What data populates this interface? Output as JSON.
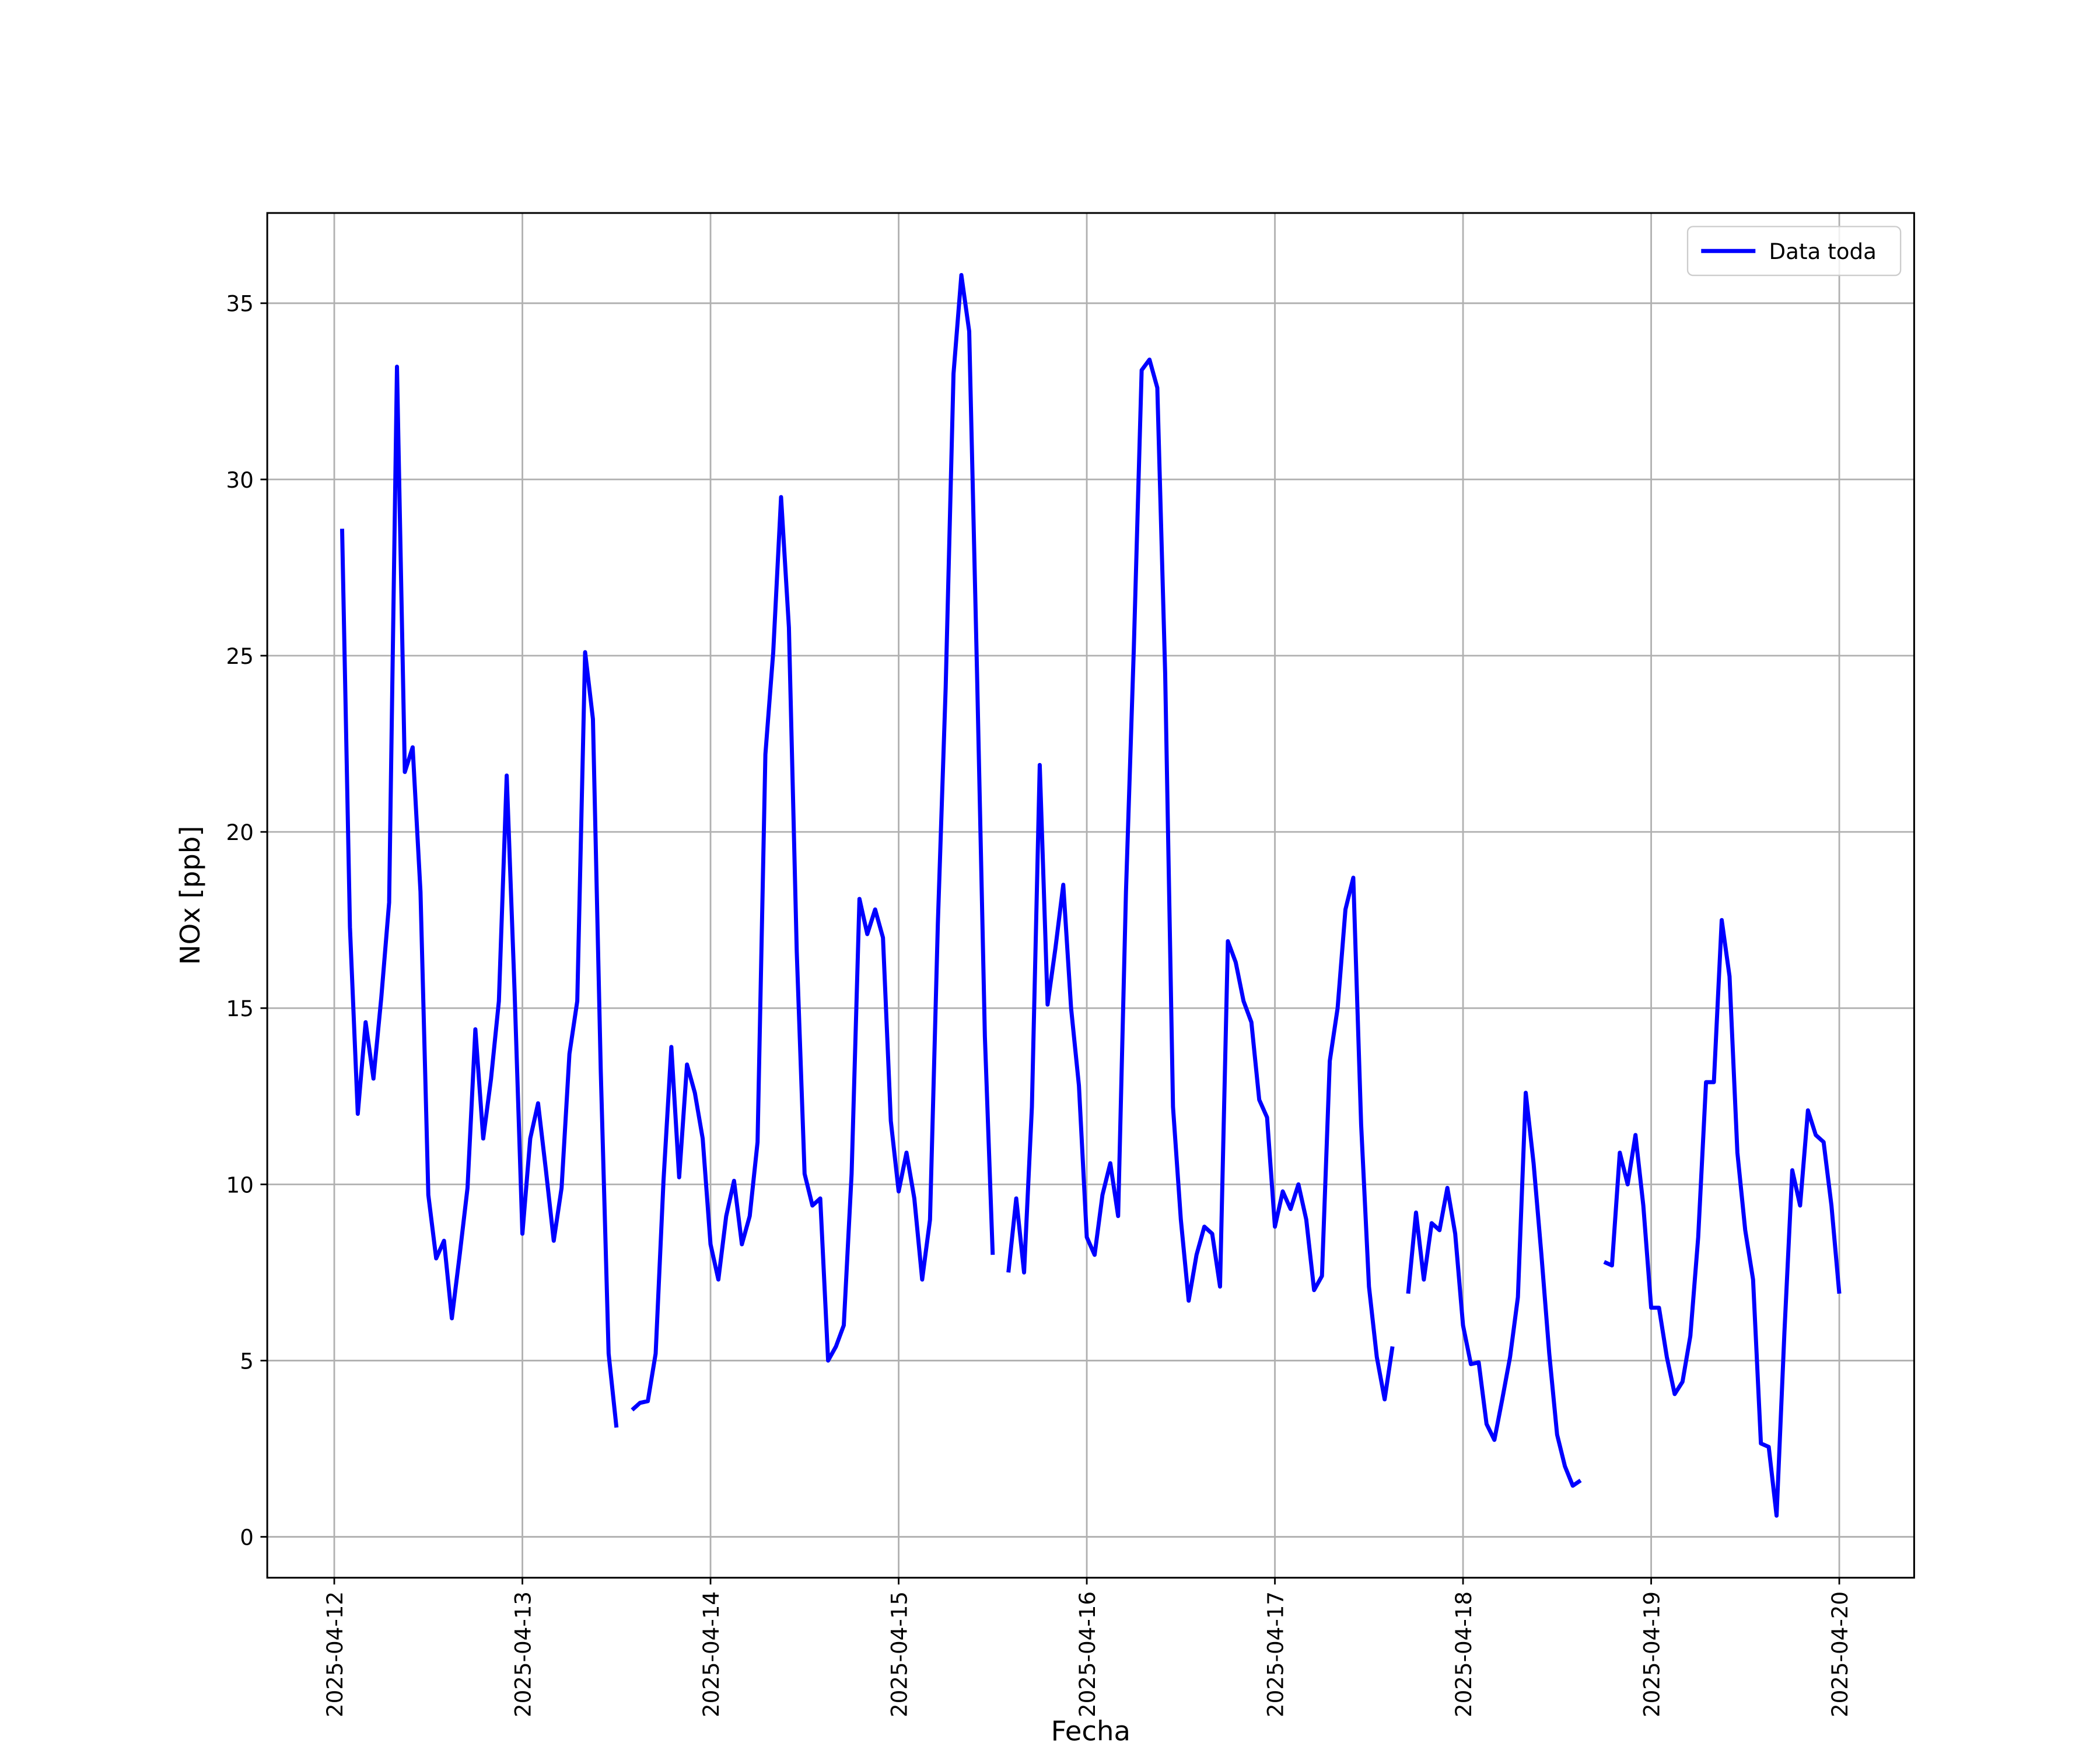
{
  "chart_data": {
    "type": "line",
    "xlabel": "Fecha",
    "ylabel": "NOx [ppb]",
    "x": [
      "2025-04-12 01:00",
      "2025-04-12 02:00",
      "2025-04-12 03:00",
      "2025-04-12 04:00",
      "2025-04-12 05:00",
      "2025-04-12 06:00",
      "2025-04-12 07:00",
      "2025-04-12 08:00",
      "2025-04-12 09:00",
      "2025-04-12 10:00",
      "2025-04-12 11:00",
      "2025-04-12 12:00",
      "2025-04-12 13:00",
      "2025-04-12 14:00",
      "2025-04-12 15:00",
      "2025-04-12 16:00",
      "2025-04-12 17:00",
      "2025-04-12 18:00",
      "2025-04-12 19:00",
      "2025-04-12 20:00",
      "2025-04-12 21:00",
      "2025-04-12 22:00",
      "2025-04-12 23:00",
      "2025-04-13 00:00",
      "2025-04-13 01:00",
      "2025-04-13 02:00",
      "2025-04-13 03:00",
      "2025-04-13 04:00",
      "2025-04-13 05:00",
      "2025-04-13 06:00",
      "2025-04-13 07:00",
      "2025-04-13 08:00",
      "2025-04-13 09:00",
      "2025-04-13 10:00",
      "2025-04-13 11:00",
      "2025-04-13 12:00",
      "2025-04-13 13:00",
      "2025-04-13 14:00",
      "2025-04-13 15:00",
      "2025-04-13 16:00",
      "2025-04-13 17:00",
      "2025-04-13 18:00",
      "2025-04-13 19:00",
      "2025-04-13 20:00",
      "2025-04-13 21:00",
      "2025-04-13 22:00",
      "2025-04-13 23:00",
      "2025-04-14 00:00",
      "2025-04-14 01:00",
      "2025-04-14 02:00",
      "2025-04-14 03:00",
      "2025-04-14 04:00",
      "2025-04-14 05:00",
      "2025-04-14 06:00",
      "2025-04-14 07:00",
      "2025-04-14 08:00",
      "2025-04-14 09:00",
      "2025-04-14 10:00",
      "2025-04-14 11:00",
      "2025-04-14 12:00",
      "2025-04-14 13:00",
      "2025-04-14 14:00",
      "2025-04-14 15:00",
      "2025-04-14 16:00",
      "2025-04-14 17:00",
      "2025-04-14 18:00",
      "2025-04-14 19:00",
      "2025-04-14 20:00",
      "2025-04-14 21:00",
      "2025-04-14 22:00",
      "2025-04-14 23:00",
      "2025-04-15 00:00",
      "2025-04-15 01:00",
      "2025-04-15 02:00",
      "2025-04-15 03:00",
      "2025-04-15 04:00",
      "2025-04-15 05:00",
      "2025-04-15 06:00",
      "2025-04-15 07:00",
      "2025-04-15 08:00",
      "2025-04-15 09:00",
      "2025-04-15 10:00",
      "2025-04-15 11:00",
      "2025-04-15 12:00",
      "2025-04-15 13:00",
      "2025-04-15 14:00",
      "2025-04-15 15:00",
      "2025-04-15 16:00",
      "2025-04-15 17:00",
      "2025-04-15 18:00",
      "2025-04-15 19:00",
      "2025-04-15 20:00",
      "2025-04-15 21:00",
      "2025-04-15 22:00",
      "2025-04-15 23:00",
      "2025-04-16 00:00",
      "2025-04-16 01:00",
      "2025-04-16 02:00",
      "2025-04-16 03:00",
      "2025-04-16 04:00",
      "2025-04-16 05:00",
      "2025-04-16 06:00",
      "2025-04-16 07:00",
      "2025-04-16 08:00",
      "2025-04-16 09:00",
      "2025-04-16 10:00",
      "2025-04-16 11:00",
      "2025-04-16 12:00",
      "2025-04-16 13:00",
      "2025-04-16 14:00",
      "2025-04-16 15:00",
      "2025-04-16 16:00",
      "2025-04-16 17:00",
      "2025-04-16 18:00",
      "2025-04-16 19:00",
      "2025-04-16 20:00",
      "2025-04-16 21:00",
      "2025-04-16 22:00",
      "2025-04-16 23:00",
      "2025-04-17 00:00",
      "2025-04-17 01:00",
      "2025-04-17 02:00",
      "2025-04-17 03:00",
      "2025-04-17 04:00",
      "2025-04-17 05:00",
      "2025-04-17 06:00",
      "2025-04-17 07:00",
      "2025-04-17 08:00",
      "2025-04-17 09:00",
      "2025-04-17 10:00",
      "2025-04-17 11:00",
      "2025-04-17 12:00",
      "2025-04-17 13:00",
      "2025-04-17 14:00",
      "2025-04-17 15:00",
      "2025-04-17 16:00",
      "2025-04-17 17:00",
      "2025-04-17 18:00",
      "2025-04-17 19:00",
      "2025-04-17 20:00",
      "2025-04-17 21:00",
      "2025-04-17 22:00",
      "2025-04-17 23:00",
      "2025-04-18 00:00",
      "2025-04-18 01:00",
      "2025-04-18 02:00",
      "2025-04-18 03:00",
      "2025-04-18 04:00",
      "2025-04-18 05:00",
      "2025-04-18 06:00",
      "2025-04-18 07:00",
      "2025-04-18 08:00",
      "2025-04-18 09:00",
      "2025-04-18 10:00",
      "2025-04-18 11:00",
      "2025-04-18 12:00",
      "2025-04-18 13:00",
      "2025-04-18 14:00",
      "2025-04-18 15:00",
      "2025-04-18 16:00",
      "2025-04-18 17:00",
      "2025-04-18 18:00",
      "2025-04-18 19:00",
      "2025-04-18 20:00",
      "2025-04-18 21:00",
      "2025-04-18 22:00",
      "2025-04-18 23:00",
      "2025-04-19 00:00",
      "2025-04-19 01:00",
      "2025-04-19 02:00",
      "2025-04-19 03:00",
      "2025-04-19 04:00",
      "2025-04-19 05:00",
      "2025-04-19 06:00",
      "2025-04-19 07:00",
      "2025-04-19 08:00",
      "2025-04-19 09:00",
      "2025-04-19 10:00",
      "2025-04-19 11:00",
      "2025-04-19 12:00",
      "2025-04-19 13:00",
      "2025-04-19 14:00",
      "2025-04-19 15:00",
      "2025-04-19 16:00",
      "2025-04-19 17:00",
      "2025-04-19 18:00",
      "2025-04-19 19:00",
      "2025-04-19 20:00",
      "2025-04-19 21:00",
      "2025-04-19 22:00",
      "2025-04-19 23:00",
      "2025-04-20 00:00"
    ],
    "series": [
      {
        "name": "Data toda",
        "color": "#0000ff",
        "values": [
          28.6,
          17.3,
          12.0,
          14.6,
          13.0,
          15.3,
          18.0,
          33.2,
          21.7,
          22.4,
          18.3,
          9.7,
          7.9,
          8.4,
          6.2,
          8.0,
          9.9,
          14.4,
          11.3,
          13.0,
          15.2,
          21.6,
          15.5,
          8.6,
          11.3,
          12.3,
          10.4,
          8.4,
          9.9,
          13.7,
          15.2,
          25.1,
          23.2,
          13.2,
          5.2,
          3.1,
          null,
          3.6,
          3.8,
          3.85,
          5.2,
          10.1,
          13.9,
          10.2,
          13.4,
          12.6,
          11.3,
          8.3,
          7.3,
          9.1,
          10.1,
          8.3,
          9.1,
          11.2,
          22.2,
          25.1,
          29.5,
          25.8,
          16.6,
          10.3,
          9.4,
          9.6,
          5.0,
          5.4,
          6.0,
          10.3,
          18.1,
          17.1,
          17.8,
          17.0,
          11.8,
          9.8,
          10.9,
          9.6,
          7.3,
          9.0,
          17.4,
          24.1,
          33.0,
          35.8,
          34.2,
          24.5,
          14.2,
          8.0,
          null,
          7.5,
          9.6,
          7.5,
          12.2,
          21.9,
          15.1,
          16.7,
          18.5,
          15.0,
          12.8,
          8.5,
          8.0,
          9.7,
          10.6,
          9.1,
          18.3,
          25.2,
          33.1,
          33.4,
          32.6,
          24.5,
          12.2,
          9.0,
          6.7,
          8.0,
          8.8,
          8.6,
          7.1,
          16.9,
          16.3,
          15.2,
          14.6,
          12.4,
          11.9,
          8.8,
          9.8,
          9.3,
          10.0,
          9.0,
          7.0,
          7.4,
          13.5,
          15.0,
          17.8,
          18.7,
          11.7,
          7.1,
          5.1,
          3.9,
          5.4,
          null,
          6.9,
          9.2,
          7.3,
          8.9,
          8.7,
          9.9,
          8.6,
          6.0,
          4.9,
          4.95,
          3.2,
          2.75,
          3.9,
          5.1,
          6.8,
          12.6,
          10.6,
          8.0,
          5.2,
          2.9,
          2.0,
          1.45,
          1.6,
          null,
          null,
          7.8,
          7.7,
          10.9,
          10.0,
          11.4,
          9.4,
          6.5,
          6.5,
          5.1,
          4.05,
          4.4,
          5.7,
          8.5,
          12.9,
          12.9,
          17.5,
          15.9,
          10.9,
          8.7,
          7.3,
          2.65,
          2.55,
          0.6,
          5.8,
          10.4,
          9.4,
          12.1,
          11.4,
          11.2,
          9.4,
          6.9
        ]
      }
    ],
    "xticks": [
      "2025-04-12",
      "2025-04-13",
      "2025-04-14",
      "2025-04-15",
      "2025-04-16",
      "2025-04-17",
      "2025-04-18",
      "2025-04-19",
      "2025-04-20"
    ],
    "ylim": [
      -1.16,
      37.56
    ],
    "yticks": [
      0,
      5,
      10,
      15,
      20,
      25,
      30,
      35
    ],
    "grid": true,
    "legend": "upper right"
  }
}
